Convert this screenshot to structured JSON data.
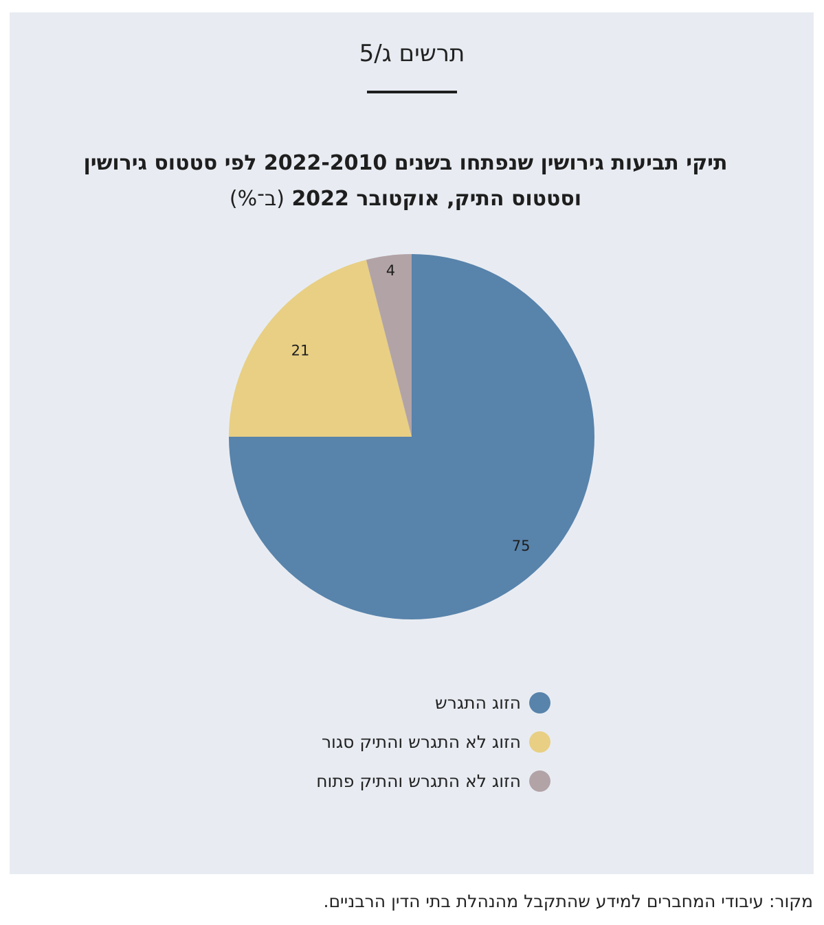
{
  "figure_label": "תרשים ג/5",
  "chart_data": {
    "type": "pie",
    "title_line1": "תיקי תביעות גירושין שנפתחו בשנים 2022-2010 לפי סטטוס גירושין",
    "title_line2": "וסטטוס התיק, אוקטובר 2022",
    "title_unit": "(ב־%)",
    "categories": [
      "הזוג התגרש",
      "הזוג לא התגרש והתיק סגור",
      "הזוג לא התגרש והתיק פתוח"
    ],
    "values": [
      75,
      21,
      4
    ],
    "data_labels": [
      "75",
      "21",
      "4"
    ],
    "colors": [
      "#5883ab",
      "#e8cf84",
      "#b2a3a6"
    ],
    "start_angle": "12 o'clock, clockwise",
    "legend_position": "bottom"
  },
  "source": "מקור: עיבודי המחברים למידע שהתקבל מהנהלת בתי הדין הרבניים."
}
